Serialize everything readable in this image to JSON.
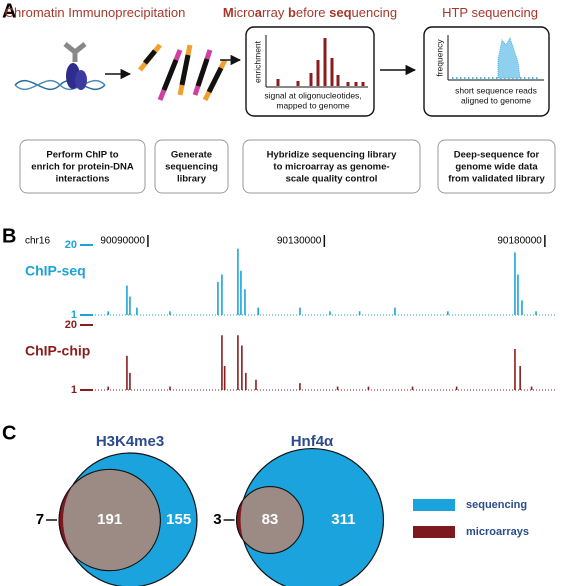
{
  "panel_labels": [
    "A",
    "B",
    "C"
  ],
  "panel_a": {
    "steps": [
      {
        "title": [
          {
            "text": "Chromatin Immunoprecipitation",
            "bold": false
          }
        ],
        "desc": [
          "Perform ChIP to",
          "enrich for protein-DNA",
          "interactions"
        ]
      },
      {
        "title": [],
        "desc": [
          "Generate",
          "sequencing",
          "library"
        ]
      },
      {
        "title": [
          {
            "text": "M",
            "bold": true
          },
          {
            "text": "icro",
            "bold": false
          },
          {
            "text": "a",
            "bold": true
          },
          {
            "text": "rray ",
            "bold": false
          },
          {
            "text": "b",
            "bold": true
          },
          {
            "text": "efore ",
            "bold": false
          },
          {
            "text": "seq",
            "bold": true
          },
          {
            "text": "uencing",
            "bold": false
          }
        ],
        "desc": [
          "Hybridize sequencing library",
          "to microarray as genome-",
          "scale quality control"
        ]
      },
      {
        "title": [
          {
            "text": "HTP sequencing",
            "bold": false
          }
        ],
        "desc": [
          "Deep-sequence for",
          "genome wide data",
          "from validated library"
        ]
      }
    ],
    "microarray_plot": {
      "ylabel": "enrichment",
      "xlabel": [
        "signal at oligonucleotides,",
        "mapped to genome"
      ]
    },
    "htp_plot": {
      "ylabel": "frequency",
      "xlabel": [
        "short sequence reads",
        "aligned to genome"
      ]
    }
  },
  "panel_b": {
    "chromosome": "chr16",
    "xlim": [
      90078000,
      90182300
    ],
    "xticks": [
      90090000,
      90130000,
      90180000
    ],
    "tracks": [
      {
        "name": "ChIP-seq",
        "color": "#1ea3d8",
        "ylim": [
          1,
          20
        ],
        "yticks": [
          1,
          20
        ],
        "x": [
          90081000,
          90085240,
          90085920,
          90087500,
          90095000,
          90105870,
          90106780,
          90110400,
          90111090,
          90112000,
          90115000,
          90124470,
          90131270,
          90138000,
          90146010,
          90158000,
          90173220,
          90173900,
          90174810,
          90178000
        ],
        "values": [
          2,
          9,
          6,
          3,
          2,
          10,
          12,
          19,
          13,
          8,
          3,
          3,
          2,
          2,
          3,
          2,
          18,
          12,
          5,
          2
        ]
      },
      {
        "name": "ChIP-chip",
        "color": "#8b1c1c",
        "ylim": [
          1,
          20
        ],
        "yticks": [
          1,
          20
        ],
        "x": [
          90081000,
          90085240,
          90085920,
          90095000,
          90106780,
          90107400,
          90110400,
          90111300,
          90112200,
          90114500,
          90124470,
          90133000,
          90140000,
          90150000,
          90160000,
          90173220,
          90174400,
          90177000
        ],
        "values": [
          2,
          11,
          6,
          2,
          17,
          8,
          17,
          14,
          6,
          4,
          3,
          2,
          2,
          2,
          2,
          13,
          8,
          2
        ]
      }
    ]
  },
  "panel_c": {
    "venns": [
      {
        "title": "H3K4me3",
        "array_only": 7,
        "overlap": 191,
        "seq_only": 155
      },
      {
        "title": "Hnf4α",
        "array_only": 3,
        "overlap": 83,
        "seq_only": 311
      }
    ],
    "overlap_color": "#9b8b84",
    "legend": [
      {
        "name": "sequencing",
        "color": "#1aa3dd"
      },
      {
        "name": "microarrays",
        "color": "#7e1a1f"
      }
    ]
  }
}
